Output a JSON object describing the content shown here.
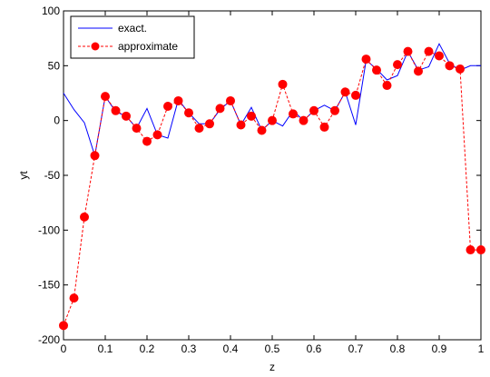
{
  "chart_data": {
    "type": "line",
    "xlabel": "z",
    "ylabel": "yt",
    "xlim": [
      0,
      1
    ],
    "ylim": [
      -200,
      100
    ],
    "xticks": [
      0,
      0.1,
      0.2,
      0.3,
      0.4,
      0.5,
      0.6,
      0.7,
      0.8,
      0.9,
      1
    ],
    "xtick_labels": [
      "0",
      "0.1",
      "0.2",
      "0.3",
      "0.4",
      "0.5",
      "0.6",
      "0.7",
      "0.8",
      "0.9",
      "1"
    ],
    "yticks": [
      -200,
      -150,
      -100,
      -50,
      0,
      50,
      100
    ],
    "ytick_labels": [
      "-200",
      "-150",
      "-100",
      "-50",
      "0",
      "50",
      "100"
    ],
    "grid": false,
    "legend_position": "top-left",
    "series": [
      {
        "name": "exact.",
        "color": "#0000ff",
        "style": "solid",
        "marker": "none",
        "x": [
          0,
          0.025,
          0.05,
          0.075,
          0.1,
          0.125,
          0.15,
          0.175,
          0.2,
          0.225,
          0.25,
          0.275,
          0.3,
          0.325,
          0.35,
          0.375,
          0.4,
          0.425,
          0.45,
          0.475,
          0.5,
          0.525,
          0.55,
          0.575,
          0.6,
          0.625,
          0.65,
          0.675,
          0.7,
          0.725,
          0.75,
          0.775,
          0.8,
          0.825,
          0.85,
          0.875,
          0.9,
          0.925,
          0.95,
          0.975,
          1
        ],
        "y": [
          25,
          10,
          -2,
          -32,
          22,
          8,
          4,
          -7,
          11,
          -13,
          -16,
          19,
          7,
          -3,
          -3,
          10,
          18,
          -4,
          12,
          -9,
          0,
          -5,
          9,
          0,
          9,
          14,
          9,
          26,
          -4,
          55,
          47,
          37,
          41,
          63,
          46,
          49,
          70,
          52,
          46,
          50,
          50
        ]
      },
      {
        "name": "approximate",
        "color": "#ff0000",
        "style": "dashed",
        "marker": "circle",
        "x": [
          0,
          0.025,
          0.05,
          0.075,
          0.1,
          0.125,
          0.15,
          0.175,
          0.2,
          0.225,
          0.25,
          0.275,
          0.3,
          0.325,
          0.35,
          0.375,
          0.4,
          0.425,
          0.45,
          0.475,
          0.5,
          0.525,
          0.55,
          0.575,
          0.6,
          0.625,
          0.65,
          0.675,
          0.7,
          0.725,
          0.75,
          0.775,
          0.8,
          0.825,
          0.85,
          0.875,
          0.9,
          0.925,
          0.95,
          0.975,
          1
        ],
        "y": [
          -187,
          -162,
          -88,
          -32,
          22,
          9,
          4,
          -7,
          -19,
          -13,
          13,
          18,
          7,
          -7,
          -3,
          11,
          18,
          -4,
          4,
          -9,
          0,
          33,
          6,
          0,
          9,
          -6,
          9,
          26,
          23,
          56,
          46,
          32,
          51,
          63,
          45,
          63,
          59,
          50,
          47,
          -118,
          -118
        ]
      }
    ]
  }
}
